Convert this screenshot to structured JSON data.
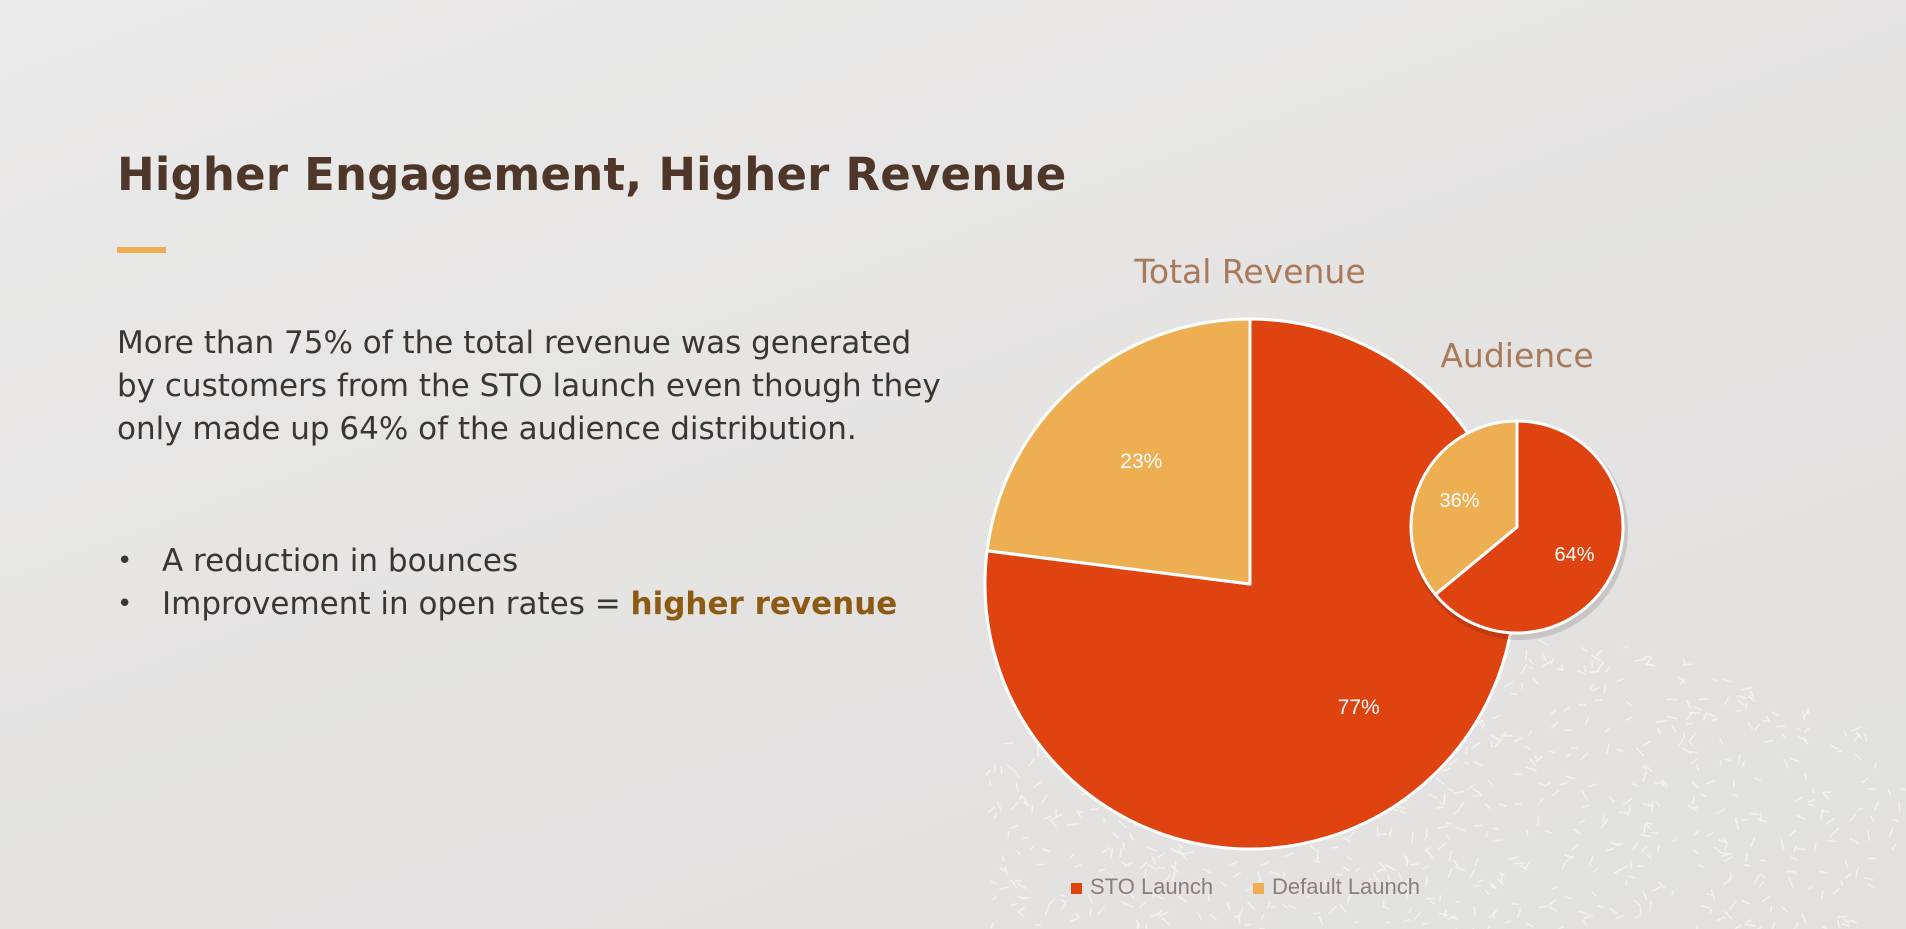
{
  "slide": {
    "title": "Higher Engagement, Higher Revenue",
    "body": "More than 75% of the total revenue was generated by customers from the STO launch even though they only made up 64% of the audience distribution.",
    "bullets": [
      {
        "text": "A reduction in bounces",
        "highlight": ""
      },
      {
        "text": "Improvement in open rates = ",
        "highlight": "higher revenue"
      }
    ],
    "bullet_glyph": "•"
  },
  "colors": {
    "title": "#4e3629",
    "accent": "#eeac52",
    "highlight": "#8c5a12",
    "sto": "#df4310",
    "default": "#eeae52",
    "chart_title": "#a87a5a"
  },
  "chart_data": [
    {
      "type": "pie",
      "title": "Total Revenue",
      "categories": [
        "STO Launch",
        "Default Launch"
      ],
      "values": [
        77,
        23
      ],
      "labels": [
        "77%",
        "23%"
      ]
    },
    {
      "type": "pie",
      "title": "Audience",
      "categories": [
        "STO Launch",
        "Default Launch"
      ],
      "values": [
        64,
        36
      ],
      "labels": [
        "64%",
        "36%"
      ]
    }
  ],
  "legend": {
    "placement": "bottom",
    "items": [
      {
        "label": "STO Launch",
        "color": "#df4310"
      },
      {
        "label": "Default Launch",
        "color": "#eeae52"
      }
    ]
  }
}
